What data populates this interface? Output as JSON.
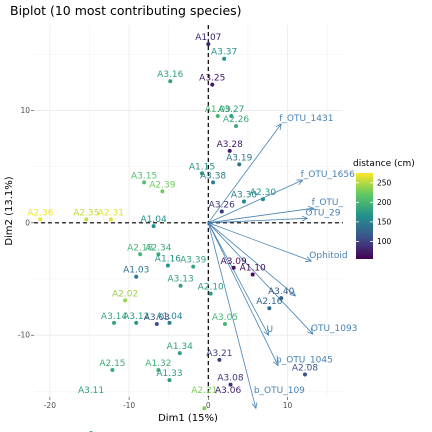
{
  "chart_data": {
    "type": "scatter",
    "title": "Biplot (10 most contributing species)",
    "xlabel": "Dim1 (15%)",
    "ylabel": "Dim2 (13.1%)",
    "xlim": [
      -22,
      17
    ],
    "ylim": [
      -15.5,
      17.6
    ],
    "x_ticks": [
      -20,
      -10,
      0,
      10
    ],
    "y_ticks": [
      -10,
      0,
      10
    ],
    "grid": true,
    "legend": {
      "title": "distance (cm)",
      "position": "right",
      "min": 55,
      "max": 275,
      "ticks": [
        100,
        150,
        200,
        250
      ]
    },
    "colormap": [
      "#440154",
      "#3b528b",
      "#21918c",
      "#5ec962",
      "#fde725"
    ],
    "points": [
      {
        "label": "A1.07",
        "x": 0.0,
        "y": 15.9,
        "distance": 80
      },
      {
        "label": "A3.37",
        "x": 2.0,
        "y": 14.6,
        "distance": 165
      },
      {
        "label": "A3.16",
        "x": -4.8,
        "y": 12.6,
        "distance": 180
      },
      {
        "label": "A3.25",
        "x": 0.5,
        "y": 12.3,
        "distance": 70
      },
      {
        "label": "A1.09",
        "x": 1.2,
        "y": 9.5,
        "distance": 200
      },
      {
        "label": "A3.27",
        "x": 2.9,
        "y": 9.5,
        "distance": 175
      },
      {
        "label": "A2.26",
        "x": 3.5,
        "y": 8.6,
        "distance": 190
      },
      {
        "label": "A3.28",
        "x": 2.7,
        "y": 6.4,
        "distance": 70
      },
      {
        "label": "A3.19",
        "x": 3.9,
        "y": 5.2,
        "distance": 140
      },
      {
        "label": "A3.15",
        "x": -8.1,
        "y": 3.6,
        "distance": 210
      },
      {
        "label": "A2.39",
        "x": -5.8,
        "y": 2.8,
        "distance": 225
      },
      {
        "label": "A1.15",
        "x": -0.8,
        "y": 4.4,
        "distance": 170
      },
      {
        "label": "A3.38",
        "x": 0.6,
        "y": 3.6,
        "distance": 150
      },
      {
        "label": "A2.36",
        "x": -21.2,
        "y": 0.3,
        "distance": 270
      },
      {
        "label": "A2.35",
        "x": -15.4,
        "y": 0.3,
        "distance": 255
      },
      {
        "label": "A2.31",
        "x": -12.3,
        "y": 0.3,
        "distance": 265
      },
      {
        "label": "A2.30",
        "x": 6.9,
        "y": 2.1,
        "distance": 165
      },
      {
        "label": "A3.30",
        "x": 4.5,
        "y": 1.9,
        "distance": 150
      },
      {
        "label": "A3.26",
        "x": 1.7,
        "y": 1.0,
        "distance": 90
      },
      {
        "label": "A1.04",
        "x": -6.9,
        "y": -0.3,
        "distance": 165
      },
      {
        "label": "A2.18",
        "x": -8.6,
        "y": -2.8,
        "distance": 200
      },
      {
        "label": "A2.34",
        "x": -6.3,
        "y": -2.8,
        "distance": 190
      },
      {
        "label": "A1.03",
        "x": -9.1,
        "y": -4.8,
        "distance": 140
      },
      {
        "label": "A1.16",
        "x": -5.1,
        "y": -3.8,
        "distance": 170
      },
      {
        "label": "A3.39",
        "x": -1.9,
        "y": -3.9,
        "distance": 185
      },
      {
        "label": "A3.13",
        "x": -3.5,
        "y": -5.6,
        "distance": 180
      },
      {
        "label": "A3.09",
        "x": 3.2,
        "y": -4.0,
        "distance": 65
      },
      {
        "label": "A1.10",
        "x": 5.6,
        "y": -4.6,
        "distance": 60
      },
      {
        "label": "A2.02",
        "x": -10.5,
        "y": -6.9,
        "distance": 240
      },
      {
        "label": "A3.14",
        "x": -11.9,
        "y": -8.9,
        "distance": 185
      },
      {
        "label": "A3.12",
        "x": -9.1,
        "y": -8.9,
        "distance": 175
      },
      {
        "label": "A3.03",
        "x": -6.5,
        "y": -9.0,
        "distance": 110
      },
      {
        "label": "A1.04",
        "x": -4.9,
        "y": -8.9,
        "distance": 150
      },
      {
        "label": "A2.10",
        "x": 0.3,
        "y": -6.3,
        "distance": 175
      },
      {
        "label": "A3.40",
        "x": 9.2,
        "y": -6.7,
        "distance": 120
      },
      {
        "label": "A2.16",
        "x": 7.7,
        "y": -7.6,
        "distance": 130
      },
      {
        "label": "A3.05",
        "x": 2.1,
        "y": -9.0,
        "distance": 200
      },
      {
        "label": "A1.34",
        "x": -3.6,
        "y": -11.6,
        "distance": 180
      },
      {
        "label": "A2.15",
        "x": -12.1,
        "y": -13.1,
        "distance": 190
      },
      {
        "label": "A1.32",
        "x": -6.3,
        "y": -13.1,
        "distance": 195
      },
      {
        "label": "A1.33",
        "x": -4.9,
        "y": -14.0,
        "distance": 175
      },
      {
        "label": "A3.21",
        "x": 1.4,
        "y": -12.2,
        "distance": 100
      },
      {
        "label": "A2.08",
        "x": 12.2,
        "y": -13.5,
        "distance": 110
      },
      {
        "label": "A3.08",
        "x": 2.8,
        "y": -14.4,
        "distance": 90
      },
      {
        "label": "A2.21",
        "x": -0.5,
        "y": -16.5,
        "distance": 230
      },
      {
        "label": "A3.11",
        "x": -14.8,
        "y": -18.7,
        "distance": 180
      },
      {
        "label": "A3.06",
        "x": 2.5,
        "y": -19.2,
        "distance": 75
      }
    ],
    "arrows": [
      {
        "label": "f_OTU_1431",
        "x": 9.2,
        "y": 8.8
      },
      {
        "label": "f_OTU_1656",
        "x": 11.9,
        "y": 3.8
      },
      {
        "label": "f_OTU_",
        "x": 13.3,
        "y": 1.3
      },
      {
        "label": "OTU_29",
        "x": 12.5,
        "y": 0.4
      },
      {
        "label": "Ophitoid",
        "x": 13.0,
        "y": -3.4
      },
      {
        "label": "OTU_1093",
        "x": 13.2,
        "y": -9.9
      },
      {
        "label": "b_OTU_1045",
        "x": 8.8,
        "y": -12.7
      },
      {
        "label": "b_OTU_109",
        "x": 6.0,
        "y": -16.5
      },
      {
        "label": "U",
        "x": 7.6,
        "y": -10.0
      },
      {
        "label": "",
        "x": 11.0,
        "y": -6.5
      }
    ]
  }
}
